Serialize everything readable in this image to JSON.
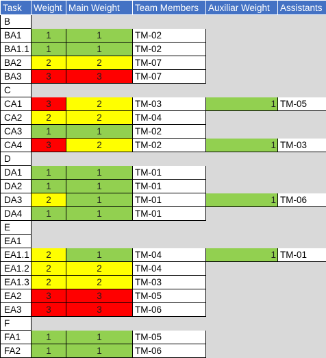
{
  "headers": [
    "Task",
    "Weight",
    "Main Weight",
    "Team Members",
    "Auxiliar Weight",
    "Assistants"
  ],
  "colors": {
    "header": "#4472c4",
    "level_1": "#92d050",
    "level_2": "#ffff00",
    "level_3": "#ff0000",
    "empty": "#d9d9d9"
  },
  "rows": [
    {
      "group": "B"
    },
    {
      "task": "BA1",
      "weight": 1,
      "main": 1,
      "team": "TM-02"
    },
    {
      "task": "BA1.1",
      "weight": 1,
      "main": 1,
      "team": "TM-02"
    },
    {
      "task": "BA2",
      "weight": 2,
      "main": 2,
      "team": "TM-07"
    },
    {
      "task": "BA3",
      "weight": 3,
      "main": 3,
      "team": "TM-07"
    },
    {
      "group": "C"
    },
    {
      "task": "CA1",
      "weight": 3,
      "main": 2,
      "team": "TM-03",
      "aux": 1,
      "assist": "TM-05"
    },
    {
      "task": "CA2",
      "weight": 2,
      "main": 2,
      "team": "TM-04"
    },
    {
      "task": "CA3",
      "weight": 1,
      "main": 1,
      "team": "TM-02"
    },
    {
      "task": "CA4",
      "weight": 3,
      "main": 2,
      "team": "TM-02",
      "aux": 1,
      "assist": "TM-03"
    },
    {
      "group": "D"
    },
    {
      "task": "DA1",
      "weight": 1,
      "main": 1,
      "team": "TM-01"
    },
    {
      "task": "DA2",
      "weight": 1,
      "main": 1,
      "team": "TM-01"
    },
    {
      "task": "DA3",
      "weight": 2,
      "main": 1,
      "team": "TM-01",
      "aux": 1,
      "assist": "TM-06"
    },
    {
      "task": "DA4",
      "weight": 1,
      "main": 1,
      "team": "TM-01"
    },
    {
      "group": "E"
    },
    {
      "group": "EA1"
    },
    {
      "task": "EA1.1",
      "weight": 2,
      "main": 1,
      "team": "TM-04",
      "aux": 1,
      "assist": "TM-01"
    },
    {
      "task": "EA1.2",
      "weight": 2,
      "main": 2,
      "team": "TM-04"
    },
    {
      "task": "EA1.3",
      "weight": 2,
      "main": 2,
      "team": "TM-03"
    },
    {
      "task": "EA2",
      "weight": 3,
      "main": 3,
      "team": "TM-05"
    },
    {
      "task": "EA3",
      "weight": 3,
      "main": 3,
      "team": "TM-06"
    },
    {
      "group": "F"
    },
    {
      "task": "FA1",
      "weight": 1,
      "main": 1,
      "team": "TM-05"
    },
    {
      "task": "FA2",
      "weight": 1,
      "main": 1,
      "team": "TM-06"
    }
  ]
}
